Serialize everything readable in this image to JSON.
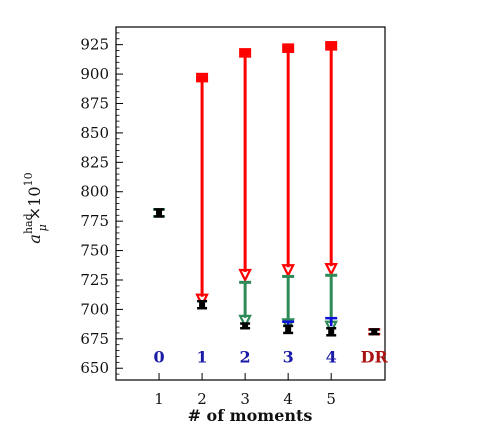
{
  "chart_data": {
    "type": "scatter",
    "xlabel": "# of moments",
    "ylabel": {
      "base": "a",
      "sup": "had",
      "sub": "μ",
      "factor": "×10",
      "factor_sup": "10"
    },
    "xlim": [
      0,
      6.25
    ],
    "ylim": [
      640,
      940
    ],
    "x_ticks": [
      1,
      2,
      3,
      4,
      5
    ],
    "y_ticks": [
      650,
      675,
      700,
      725,
      750,
      775,
      800,
      825,
      850,
      875,
      900,
      925
    ],
    "series": [
      {
        "marker": "black-square",
        "color": "#000000",
        "points": [
          {
            "x": 1,
            "y": 782,
            "err": 3
          },
          {
            "x": 2,
            "y": 704,
            "err": 3
          },
          {
            "x": 3,
            "y": 686,
            "err": 2
          },
          {
            "x": 4,
            "y": 683,
            "err": 3
          },
          {
            "x": 5,
            "y": 681,
            "err": 3
          },
          {
            "x": 6,
            "y": 681,
            "err": 2
          }
        ]
      }
    ],
    "upper_markers": [
      {
        "x": 1,
        "y": 782,
        "err": 3,
        "color": "#2e8b57"
      },
      {
        "x": 2,
        "y": 897,
        "err": 3,
        "color": "#ff0000"
      },
      {
        "x": 3,
        "y": 918,
        "err": 3,
        "color": "#ff0000"
      },
      {
        "x": 4,
        "y": 922,
        "err": 3,
        "color": "#ff0000"
      },
      {
        "x": 5,
        "y": 924,
        "err": 3,
        "color": "#ff0000"
      },
      {
        "x": 6,
        "y": 681,
        "err": 2,
        "color": "#cc0000"
      }
    ],
    "red_arrows": [
      {
        "x": 2,
        "from": 897,
        "to": 704
      },
      {
        "x": 3,
        "from": 918,
        "to": 725
      },
      {
        "x": 4,
        "from": 922,
        "to": 729
      },
      {
        "x": 5,
        "from": 924,
        "to": 730
      }
    ],
    "green_arrows": [
      {
        "x": 3,
        "from": 723,
        "to": 686
      },
      {
        "x": 4,
        "from": 728,
        "to": 683
      },
      {
        "x": 5,
        "from": 729,
        "to": 681
      }
    ],
    "blue_markers": [
      {
        "x": 4,
        "y": 687
      },
      {
        "x": 5,
        "y": 690
      }
    ],
    "category_labels": [
      {
        "x": 1,
        "y": 660,
        "text": "0",
        "color": "#1a1aa6"
      },
      {
        "x": 2,
        "y": 660,
        "text": "1",
        "color": "#1a1aa6"
      },
      {
        "x": 3,
        "y": 660,
        "text": "2",
        "color": "#1a1aa6"
      },
      {
        "x": 4,
        "y": 660,
        "text": "3",
        "color": "#1a1aa6"
      },
      {
        "x": 5,
        "y": 660,
        "text": "4",
        "color": "#1a1aa6"
      },
      {
        "x": 6,
        "y": 660,
        "text": "DR",
        "color": "#aa1111"
      }
    ],
    "grid": false,
    "colors": {
      "red": "#ff0000",
      "green": "#2e8b57",
      "blue": "#1010dd",
      "black": "#000000"
    }
  }
}
